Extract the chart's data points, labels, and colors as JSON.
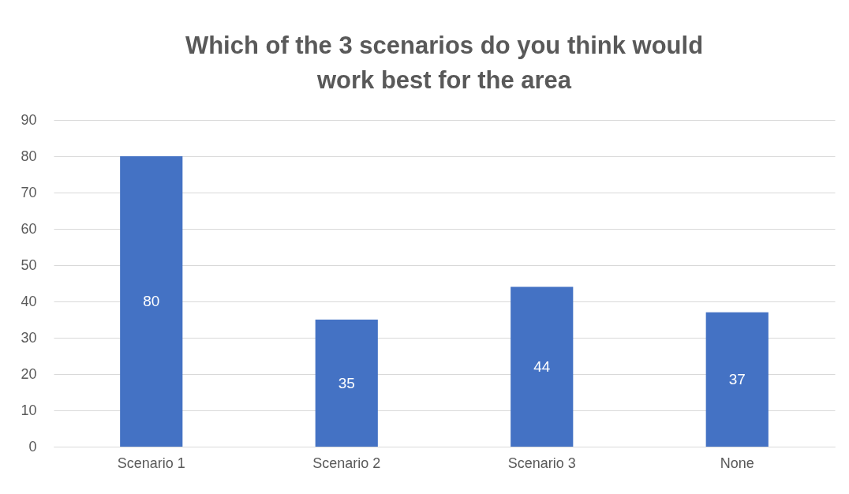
{
  "chart_data": {
    "type": "bar",
    "title": "Which of the 3 scenarios do you think would work best for the area",
    "categories": [
      "Scenario 1",
      "Scenario 2",
      "Scenario 3",
      "None"
    ],
    "values": [
      80,
      35,
      44,
      37
    ],
    "color": "#4472c4",
    "ylim": [
      0,
      90
    ],
    "yticks": [
      0,
      10,
      20,
      30,
      40,
      50,
      60,
      70,
      80,
      90
    ],
    "grid": "y",
    "data_labels": true
  }
}
